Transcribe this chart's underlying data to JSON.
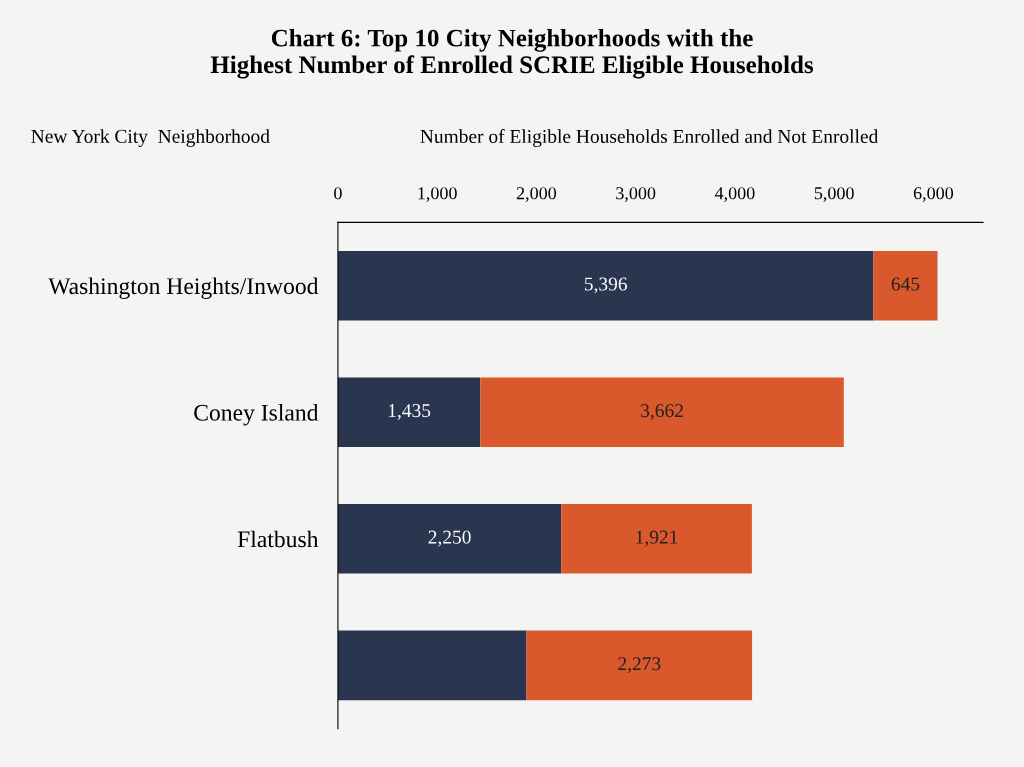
{
  "chart_data": {
    "type": "bar",
    "orientation": "horizontal",
    "stacked": true,
    "title": "Chart 6: Top 10 City Neighborhoods with the\nHighest Number of Enrolled SCRIE Eligible Households",
    "ylabel": "New York City  Neighborhood",
    "xlabel": "Number of Eligible Households Enrolled and Not Enrolled",
    "categories": [
      "Washington Heights/Inwood",
      "Coney Island",
      "Flatbush",
      null
    ],
    "series": [
      {
        "color": "#2a3550",
        "values": [
          5396,
          1435,
          2250,
          1900
        ],
        "value_labels": [
          "5,396",
          "1,435",
          "2,250",
          null
        ]
      },
      {
        "color": "#d9582c",
        "values": [
          645,
          3662,
          1921,
          2273
        ],
        "value_labels": [
          "645",
          "3,662",
          "1,921",
          "2,273"
        ]
      }
    ],
    "xlim": [
      0,
      6500
    ],
    "xticks": [
      {
        "value": 0,
        "label": "0"
      },
      {
        "value": 1000,
        "label": "1,000"
      },
      {
        "value": 2000,
        "label": "2,000"
      },
      {
        "value": 3000,
        "label": "3,000"
      },
      {
        "value": 4000,
        "label": "4,000"
      },
      {
        "value": 5000,
        "label": "5,000"
      },
      {
        "value": 6000,
        "label": "6,000"
      }
    ],
    "grid": false,
    "legend": false
  }
}
